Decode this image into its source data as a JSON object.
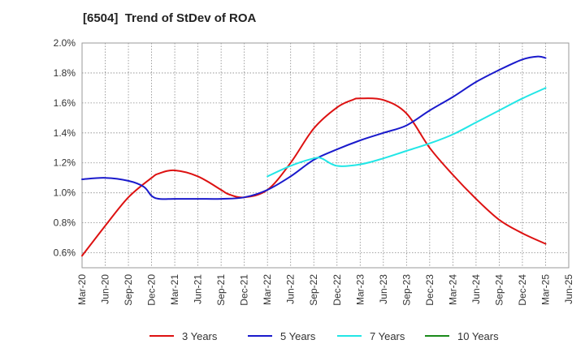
{
  "chart_data": {
    "type": "line",
    "title": "[6504]  Trend of StDev of ROA",
    "xlabel": "",
    "ylabel": "",
    "x_ticks": [
      "Mar-20",
      "Jun-20",
      "Sep-20",
      "Dec-20",
      "Mar-21",
      "Jun-21",
      "Sep-21",
      "Dec-21",
      "Mar-22",
      "Jun-22",
      "Sep-22",
      "Dec-22",
      "Mar-23",
      "Jun-23",
      "Sep-23",
      "Dec-23",
      "Mar-24",
      "Jun-24",
      "Sep-24",
      "Dec-24",
      "Mar-25",
      "Jun-25"
    ],
    "y_ticks": [
      "0.6%",
      "0.8%",
      "1.0%",
      "1.2%",
      "1.4%",
      "1.6%",
      "1.8%",
      "2.0%"
    ],
    "ylim": [
      0.5,
      2.0
    ],
    "grid": true,
    "legend_position": "bottom",
    "series": [
      {
        "name": "3 Years",
        "color": "#dd1111",
        "x": [
          "Mar-20",
          "Jun-20",
          "Sep-20",
          "Dec-20",
          "Jan-21",
          "Mar-21",
          "Jun-21",
          "Sep-21",
          "Oct-21",
          "Dec-21",
          "Mar-22",
          "Jun-22",
          "Sep-22",
          "Dec-22",
          "Feb-23",
          "Mar-23",
          "Jun-23",
          "Sep-23",
          "Dec-23",
          "Mar-24",
          "Jun-24",
          "Sep-24",
          "Dec-24",
          "Mar-25"
        ],
        "values": [
          0.58,
          0.78,
          0.97,
          1.1,
          1.13,
          1.15,
          1.11,
          1.02,
          0.99,
          0.97,
          1.02,
          1.2,
          1.43,
          1.57,
          1.62,
          1.63,
          1.62,
          1.53,
          1.3,
          1.12,
          0.96,
          0.82,
          0.73,
          0.66
        ]
      },
      {
        "name": "5 Years",
        "color": "#1a1acc",
        "x": [
          "Mar-20",
          "Jun-20",
          "Sep-20",
          "Nov-20",
          "Dec-20",
          "Jan-21",
          "Mar-21",
          "Jun-21",
          "Sep-21",
          "Dec-21",
          "Mar-22",
          "Jun-22",
          "Sep-22",
          "Dec-22",
          "Mar-23",
          "Jun-23",
          "Sep-23",
          "Dec-23",
          "Mar-24",
          "Jun-24",
          "Sep-24",
          "Dec-24",
          "Feb-25",
          "Mar-25"
        ],
        "values": [
          1.09,
          1.1,
          1.08,
          1.04,
          0.98,
          0.96,
          0.96,
          0.96,
          0.96,
          0.97,
          1.02,
          1.11,
          1.22,
          1.29,
          1.35,
          1.4,
          1.45,
          1.55,
          1.64,
          1.74,
          1.82,
          1.89,
          1.91,
          1.9
        ]
      },
      {
        "name": "7 Years",
        "color": "#22e6e6",
        "x": [
          "Mar-22",
          "Jun-22",
          "Sep-22",
          "Oct-22",
          "Dec-22",
          "Mar-23",
          "Jun-23",
          "Sep-23",
          "Dec-23",
          "Mar-24",
          "Jun-24",
          "Sep-24",
          "Dec-24",
          "Mar-25"
        ],
        "values": [
          1.11,
          1.18,
          1.23,
          1.23,
          1.18,
          1.19,
          1.23,
          1.28,
          1.33,
          1.39,
          1.47,
          1.55,
          1.63,
          1.7
        ]
      },
      {
        "name": "10 Years",
        "color": "#1a8a1a",
        "x": [],
        "values": []
      }
    ]
  }
}
